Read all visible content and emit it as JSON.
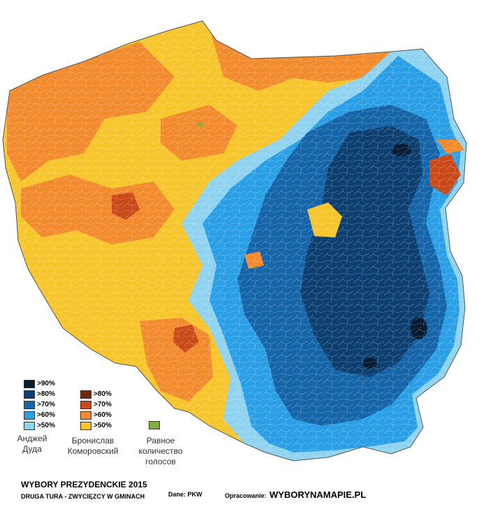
{
  "title": "WYBORY PREZYDENCKIE 2015",
  "subtitle": "DRUGA TURA - ZWYCIĘZCY W GMINACH",
  "source_label": "Dane:",
  "source_value": "PKW",
  "credit_label": "Opracowanie:",
  "credit_value": "WYBORYNAMAPIE.PL",
  "legend": {
    "duda": {
      "label_line1": "Анджей",
      "label_line2": "Дуда",
      "levels": [
        ">90%",
        ">80%",
        ">70%",
        ">60%",
        ">50%"
      ],
      "colors": [
        "#071b33",
        "#0d3f70",
        "#1565a8",
        "#2b9fe6",
        "#8fd3f0"
      ]
    },
    "komorowski": {
      "label_line1": "Бронислав",
      "label_line2": "Коморовский",
      "levels": [
        ">80%",
        ">70%",
        ">60%",
        ">50%"
      ],
      "colors": [
        "#6e2a10",
        "#c94a18",
        "#f28a2e",
        "#f7c52c"
      ]
    },
    "tie": {
      "label_line1": "Равное",
      "label_line2": "количество",
      "label_line3": "голосов",
      "color": "#7db33a"
    }
  }
}
